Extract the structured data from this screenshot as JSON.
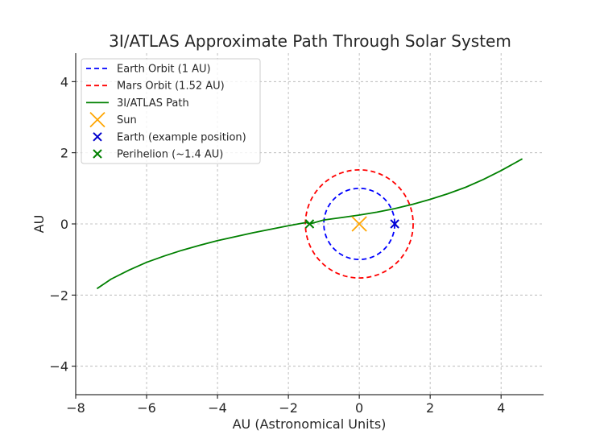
{
  "chart_data": {
    "type": "line",
    "title": "3I/ATLAS Approximate Path Through Solar System",
    "xlabel": "AU (Astronomical Units)",
    "ylabel": "AU",
    "xlim": [
      -8,
      5.2
    ],
    "ylim": [
      -4.8,
      4.8
    ],
    "xticks": [
      -8,
      -6,
      -4,
      -2,
      0,
      2,
      4
    ],
    "yticks": [
      -4,
      -2,
      0,
      2,
      4
    ],
    "grid": true,
    "legend_position": "upper-left",
    "series": [
      {
        "name": "Earth Orbit (1 AU)",
        "kind": "circle",
        "radius": 1.0,
        "center": [
          0,
          0
        ],
        "color": "#0000ff",
        "style": "dashed"
      },
      {
        "name": "Mars Orbit (1.52 AU)",
        "kind": "circle",
        "radius": 1.52,
        "center": [
          0,
          0
        ],
        "color": "#ff0000",
        "style": "dashed"
      },
      {
        "name": "3I/ATLAS Path",
        "kind": "line",
        "color": "#008000",
        "style": "solid",
        "x": [
          -7.4,
          -7.0,
          -6.5,
          -6.0,
          -5.5,
          -5.0,
          -4.5,
          -4.0,
          -3.5,
          -3.0,
          -2.5,
          -2.0,
          -1.5,
          -1.4,
          -1.0,
          -0.5,
          0.0,
          0.5,
          1.0,
          1.5,
          2.0,
          2.5,
          3.0,
          3.5,
          4.0,
          4.6
        ],
        "y": [
          -1.82,
          -1.55,
          -1.3,
          -1.08,
          -0.9,
          -0.74,
          -0.6,
          -0.47,
          -0.36,
          -0.25,
          -0.15,
          -0.05,
          0.04,
          0.0,
          0.11,
          0.18,
          0.25,
          0.33,
          0.43,
          0.55,
          0.69,
          0.85,
          1.03,
          1.25,
          1.5,
          1.83
        ]
      },
      {
        "name": "Sun",
        "kind": "marker",
        "x": [
          0
        ],
        "y": [
          0
        ],
        "color": "#ffa500",
        "marker": "x",
        "size": "large"
      },
      {
        "name": "Earth (example position)",
        "kind": "marker",
        "x": [
          1
        ],
        "y": [
          0
        ],
        "color": "#0000cd",
        "marker": "x",
        "size": "small"
      },
      {
        "name": "Perihelion (~1.4 AU)",
        "kind": "marker",
        "x": [
          -1.4
        ],
        "y": [
          0
        ],
        "color": "#008000",
        "marker": "x",
        "size": "small"
      }
    ]
  }
}
